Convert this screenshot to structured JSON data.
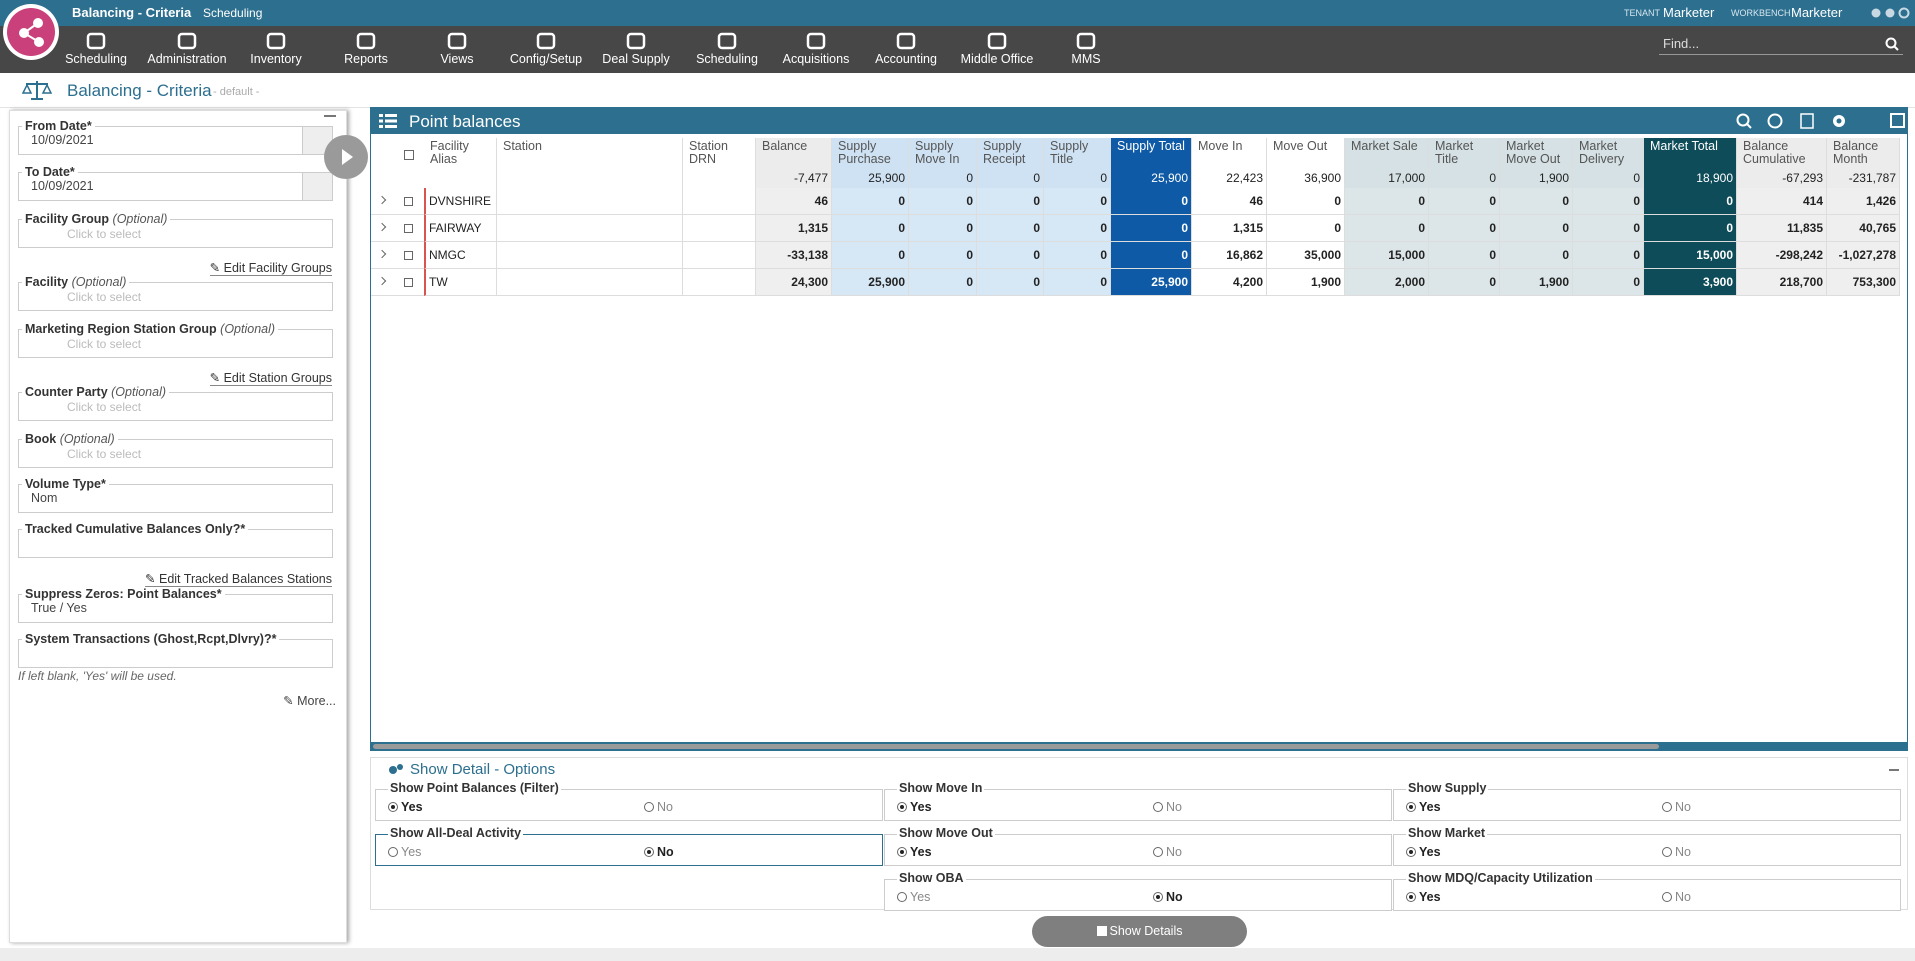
{
  "header": {
    "app_title": "Balancing - Criteria",
    "app_subtitle": "Scheduling",
    "tenant_label": "TENANT",
    "tenant": "Marketer",
    "workbench_label": "WORKBENCH",
    "workbench": "Marketer",
    "find_placeholder": "Find..."
  },
  "nav": [
    "Scheduling",
    "Administration",
    "Inventory",
    "Reports",
    "Views",
    "Config/Setup",
    "Deal Supply",
    "Scheduling",
    "Acquisitions",
    "Accounting",
    "Middle Office",
    "MMS"
  ],
  "page": {
    "title": "Balancing - Criteria",
    "subtitle": "- default -"
  },
  "criteria": {
    "fields": [
      {
        "label": "From Date*",
        "value": "10/09/2021"
      },
      {
        "label": "To Date*",
        "value": "10/09/2021"
      },
      {
        "label": "Facility Group",
        "hint": "(Optional)",
        "placeholder": "Click to select",
        "link": "Edit Facility Groups"
      },
      {
        "label": "Facility",
        "hint": "(Optional)",
        "placeholder": "Click to select"
      },
      {
        "label": "Marketing Region Station Group",
        "hint": "(Optional)",
        "placeholder": "Click to select",
        "link": "Edit Station Groups"
      },
      {
        "label": "Counter Party",
        "hint": "(Optional)",
        "placeholder": "Click to select"
      },
      {
        "label": "Book",
        "hint": "(Optional)",
        "placeholder": "Click to select"
      },
      {
        "label": "Volume Type*",
        "value": "Nom"
      },
      {
        "label": "Tracked Cumulative Balances Only?*",
        "link": "Edit Tracked Balances Stations"
      },
      {
        "label": "Suppress Zeros: Point Balances*",
        "value": "True / Yes"
      },
      {
        "label": "System Transactions (Ghost,Rcpt,Dlvry)?*"
      }
    ],
    "note": "If left blank, 'Yes' will be used.",
    "more": "More..."
  },
  "grid": {
    "title": "Point balances",
    "columns": [
      {
        "label": "Facility Alias"
      },
      {
        "label": "Station"
      },
      {
        "label": "Station DRN"
      },
      {
        "label": "Balance",
        "total": "-7,477"
      },
      {
        "label": "Supply Purchase",
        "total": "25,900"
      },
      {
        "label": "Supply Move In",
        "total": "0"
      },
      {
        "label": "Supply Receipt",
        "total": "0"
      },
      {
        "label": "Supply Title",
        "total": "0"
      },
      {
        "label": "Supply Total",
        "total": "25,900"
      },
      {
        "label": "Move In",
        "total": "22,423"
      },
      {
        "label": "Move Out",
        "total": "36,900"
      },
      {
        "label": "Market Sale",
        "total": "17,000"
      },
      {
        "label": "Market Title",
        "total": "0"
      },
      {
        "label": "Market Move Out",
        "total": "1,900"
      },
      {
        "label": "Market Delivery",
        "total": "0"
      },
      {
        "label": "Market Total",
        "total": "18,900"
      },
      {
        "label": "Balance Cumulative",
        "total": "-67,293"
      },
      {
        "label": "Balance Month",
        "total": "-231,787"
      }
    ],
    "rows": [
      {
        "alias": "DVNSHIRE",
        "values": [
          "46",
          "0",
          "0",
          "0",
          "0",
          "0",
          "46",
          "0",
          "0",
          "0",
          "0",
          "0",
          "0",
          "414",
          "1,426"
        ]
      },
      {
        "alias": "FAIRWAY",
        "values": [
          "1,315",
          "0",
          "0",
          "0",
          "0",
          "0",
          "1,315",
          "0",
          "0",
          "0",
          "0",
          "0",
          "0",
          "11,835",
          "40,765"
        ]
      },
      {
        "alias": "NMGC",
        "values": [
          "-33,138",
          "0",
          "0",
          "0",
          "0",
          "0",
          "16,862",
          "35,000",
          "15,000",
          "0",
          "0",
          "0",
          "15,000",
          "-298,242",
          "-1,027,278"
        ]
      },
      {
        "alias": "TW",
        "values": [
          "24,300",
          "25,900",
          "0",
          "0",
          "0",
          "25,900",
          "4,200",
          "1,900",
          "2,000",
          "0",
          "1,900",
          "0",
          "3,900",
          "218,700",
          "753,300"
        ]
      }
    ]
  },
  "options": {
    "title": "Show Detail - Options",
    "yes": "Yes",
    "no": "No",
    "columns": [
      [
        {
          "label": "Show Point Balances (Filter)",
          "selected": "yes"
        },
        {
          "label": "Show All-Deal Activity",
          "selected": "no"
        }
      ],
      [
        {
          "label": "Show Move In",
          "selected": "yes"
        },
        {
          "label": "Show Move Out",
          "selected": "yes"
        },
        {
          "label": "Show OBA",
          "selected": "no"
        }
      ],
      [
        {
          "label": "Show Supply",
          "selected": "yes"
        },
        {
          "label": "Show Market",
          "selected": "yes"
        },
        {
          "label": "Show MDQ/Capacity Utilization",
          "selected": "yes"
        }
      ]
    ],
    "button": "Show Details"
  }
}
